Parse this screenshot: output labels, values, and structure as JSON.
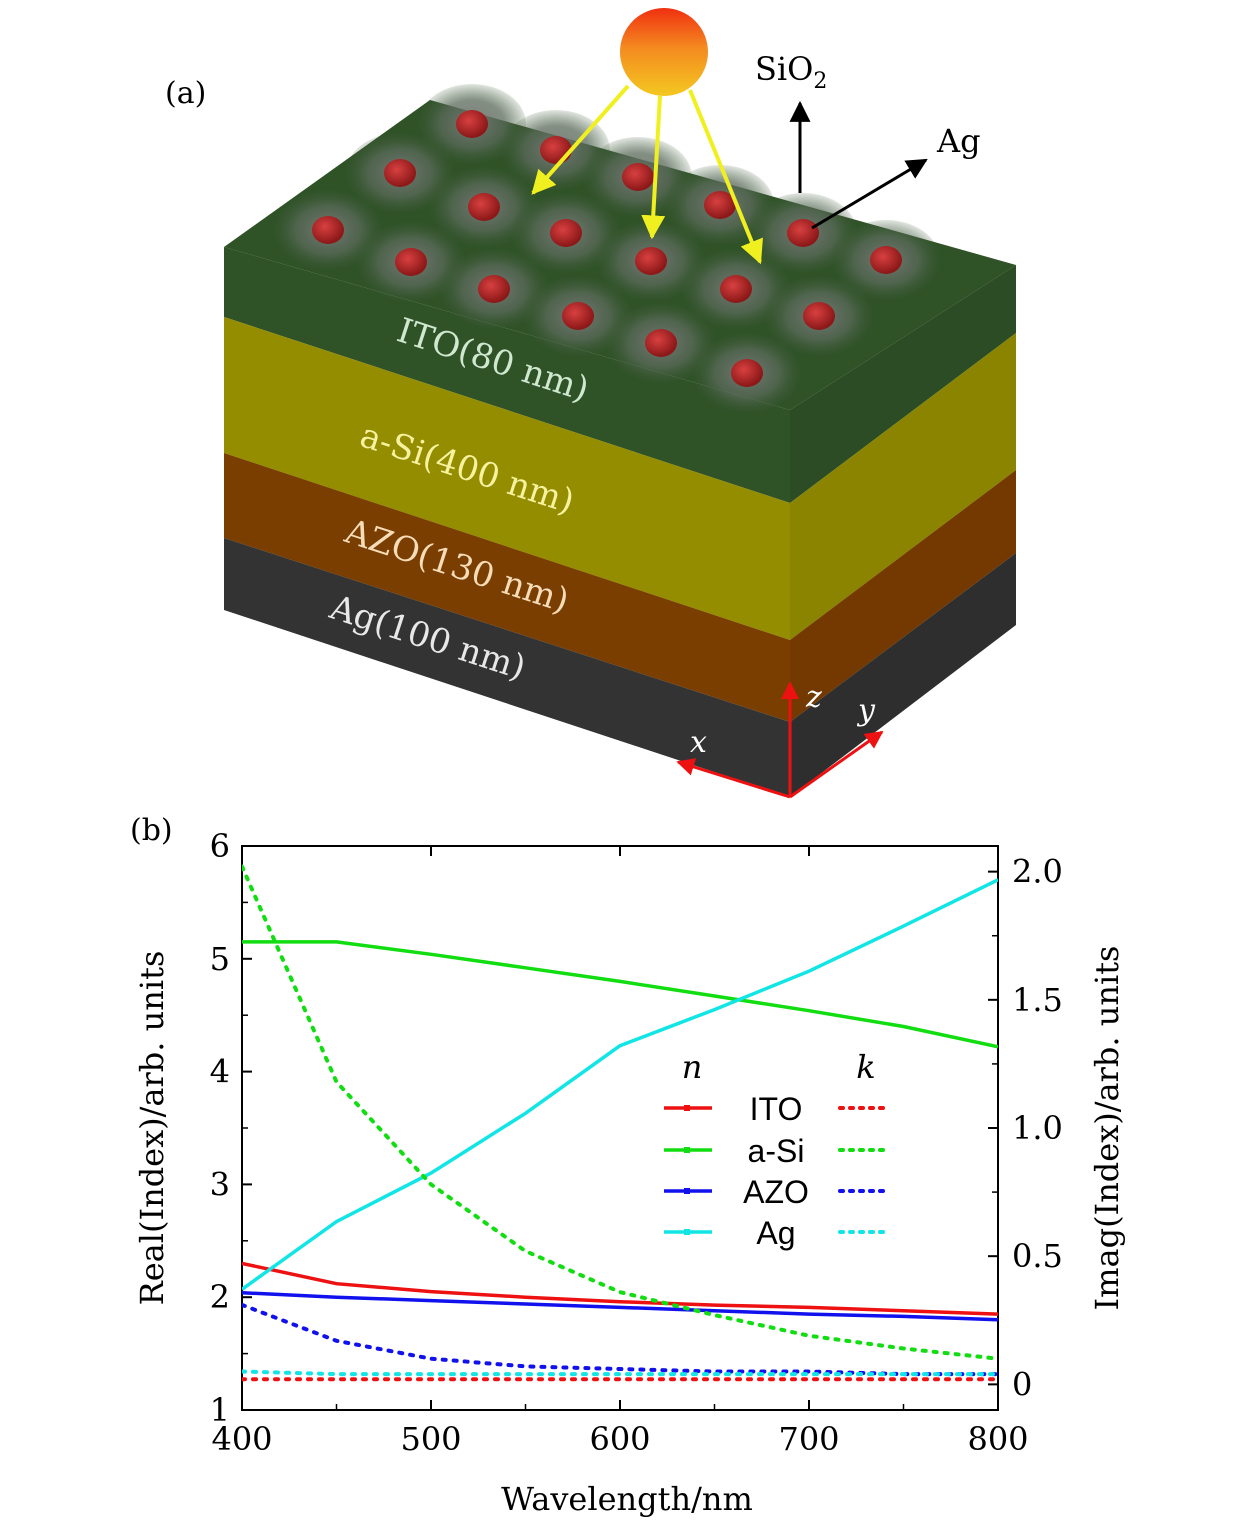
{
  "panel_a": {
    "label": "(a)",
    "layers": [
      {
        "name": "ITO",
        "label": "ITO(80 nm)",
        "color": "#2f5227"
      },
      {
        "name": "a-Si",
        "label": "a-Si(400 nm)",
        "color": "#948d00"
      },
      {
        "name": "AZO",
        "label": "AZO(130 nm)",
        "color": "#7a3e00"
      },
      {
        "name": "Ag",
        "label": "Ag(100 nm)",
        "color": "#333333"
      }
    ],
    "annotations": {
      "sio2": "SiO",
      "sio2_sub": "2",
      "ag": "Ag"
    },
    "axes": {
      "x": "x",
      "y": "y",
      "z": "z"
    },
    "colors": {
      "particle": "#b02a2a",
      "light_ray": "#f0f020",
      "sun": "#f4a020",
      "axis": "#ee1111"
    }
  },
  "panel_b": {
    "label": "(b)",
    "legend": {
      "n_header": "n",
      "k_header": "k",
      "entries": [
        "ITO",
        "a-Si",
        "AZO",
        "Ag"
      ]
    }
  },
  "chart_data": {
    "type": "line",
    "xlabel": "Wavelength/nm",
    "ylabel": "Real(Index)/arb. units",
    "y2label": "Imag(Index)/arb. units",
    "xlim": [
      400,
      800
    ],
    "ylim": [
      1,
      6
    ],
    "y2lim": [
      -0.1,
      2.1
    ],
    "xticks": [
      400,
      500,
      600,
      700,
      800
    ],
    "yticks": [
      1,
      2,
      3,
      4,
      5,
      6
    ],
    "y2ticks": [
      "0",
      "0.5",
      "1.0",
      "1.5",
      "2.0"
    ],
    "y2tick_values": [
      0,
      0.5,
      1.0,
      1.5,
      2.0
    ],
    "legend_position": "center-right",
    "x": [
      400,
      450,
      500,
      550,
      600,
      650,
      700,
      750,
      800
    ],
    "series": [
      {
        "name": "ITO",
        "part": "n",
        "axis": "left",
        "color": "#ee1111",
        "style": "solid",
        "values": [
          2.3,
          2.12,
          2.05,
          2.0,
          1.96,
          1.93,
          1.91,
          1.88,
          1.85
        ]
      },
      {
        "name": "a-Si",
        "part": "n",
        "axis": "left",
        "color": "#11dd11",
        "style": "solid",
        "values": [
          5.15,
          5.15,
          5.04,
          4.92,
          4.8,
          4.67,
          4.54,
          4.4,
          4.22
        ]
      },
      {
        "name": "AZO",
        "part": "n",
        "axis": "left",
        "color": "#1111ee",
        "style": "solid",
        "values": [
          2.04,
          2.0,
          1.97,
          1.94,
          1.91,
          1.88,
          1.85,
          1.83,
          1.8
        ]
      },
      {
        "name": "Ag",
        "part": "n",
        "axis": "left",
        "color": "#11e5e5",
        "style": "solid",
        "values": [
          2.07,
          2.67,
          3.1,
          3.63,
          4.23,
          4.55,
          4.89,
          5.29,
          5.7
        ]
      },
      {
        "name": "ITO",
        "part": "k",
        "axis": "right",
        "color": "#ee1111",
        "style": "dotted",
        "values": [
          0.02,
          0.02,
          0.02,
          0.02,
          0.02,
          0.02,
          0.02,
          0.02,
          0.02
        ]
      },
      {
        "name": "a-Si",
        "part": "k",
        "axis": "right",
        "color": "#11dd11",
        "style": "dotted",
        "values": [
          2.02,
          1.18,
          0.78,
          0.52,
          0.36,
          0.27,
          0.19,
          0.14,
          0.1
        ]
      },
      {
        "name": "AZO",
        "part": "k",
        "axis": "right",
        "color": "#1111ee",
        "style": "dotted",
        "values": [
          0.31,
          0.17,
          0.1,
          0.07,
          0.06,
          0.05,
          0.05,
          0.04,
          0.04
        ]
      },
      {
        "name": "Ag",
        "part": "k",
        "axis": "right",
        "color": "#11e5e5",
        "style": "dotted",
        "values": [
          0.05,
          0.04,
          0.04,
          0.04,
          0.04,
          0.04,
          0.04,
          0.04,
          0.04
        ]
      }
    ]
  }
}
